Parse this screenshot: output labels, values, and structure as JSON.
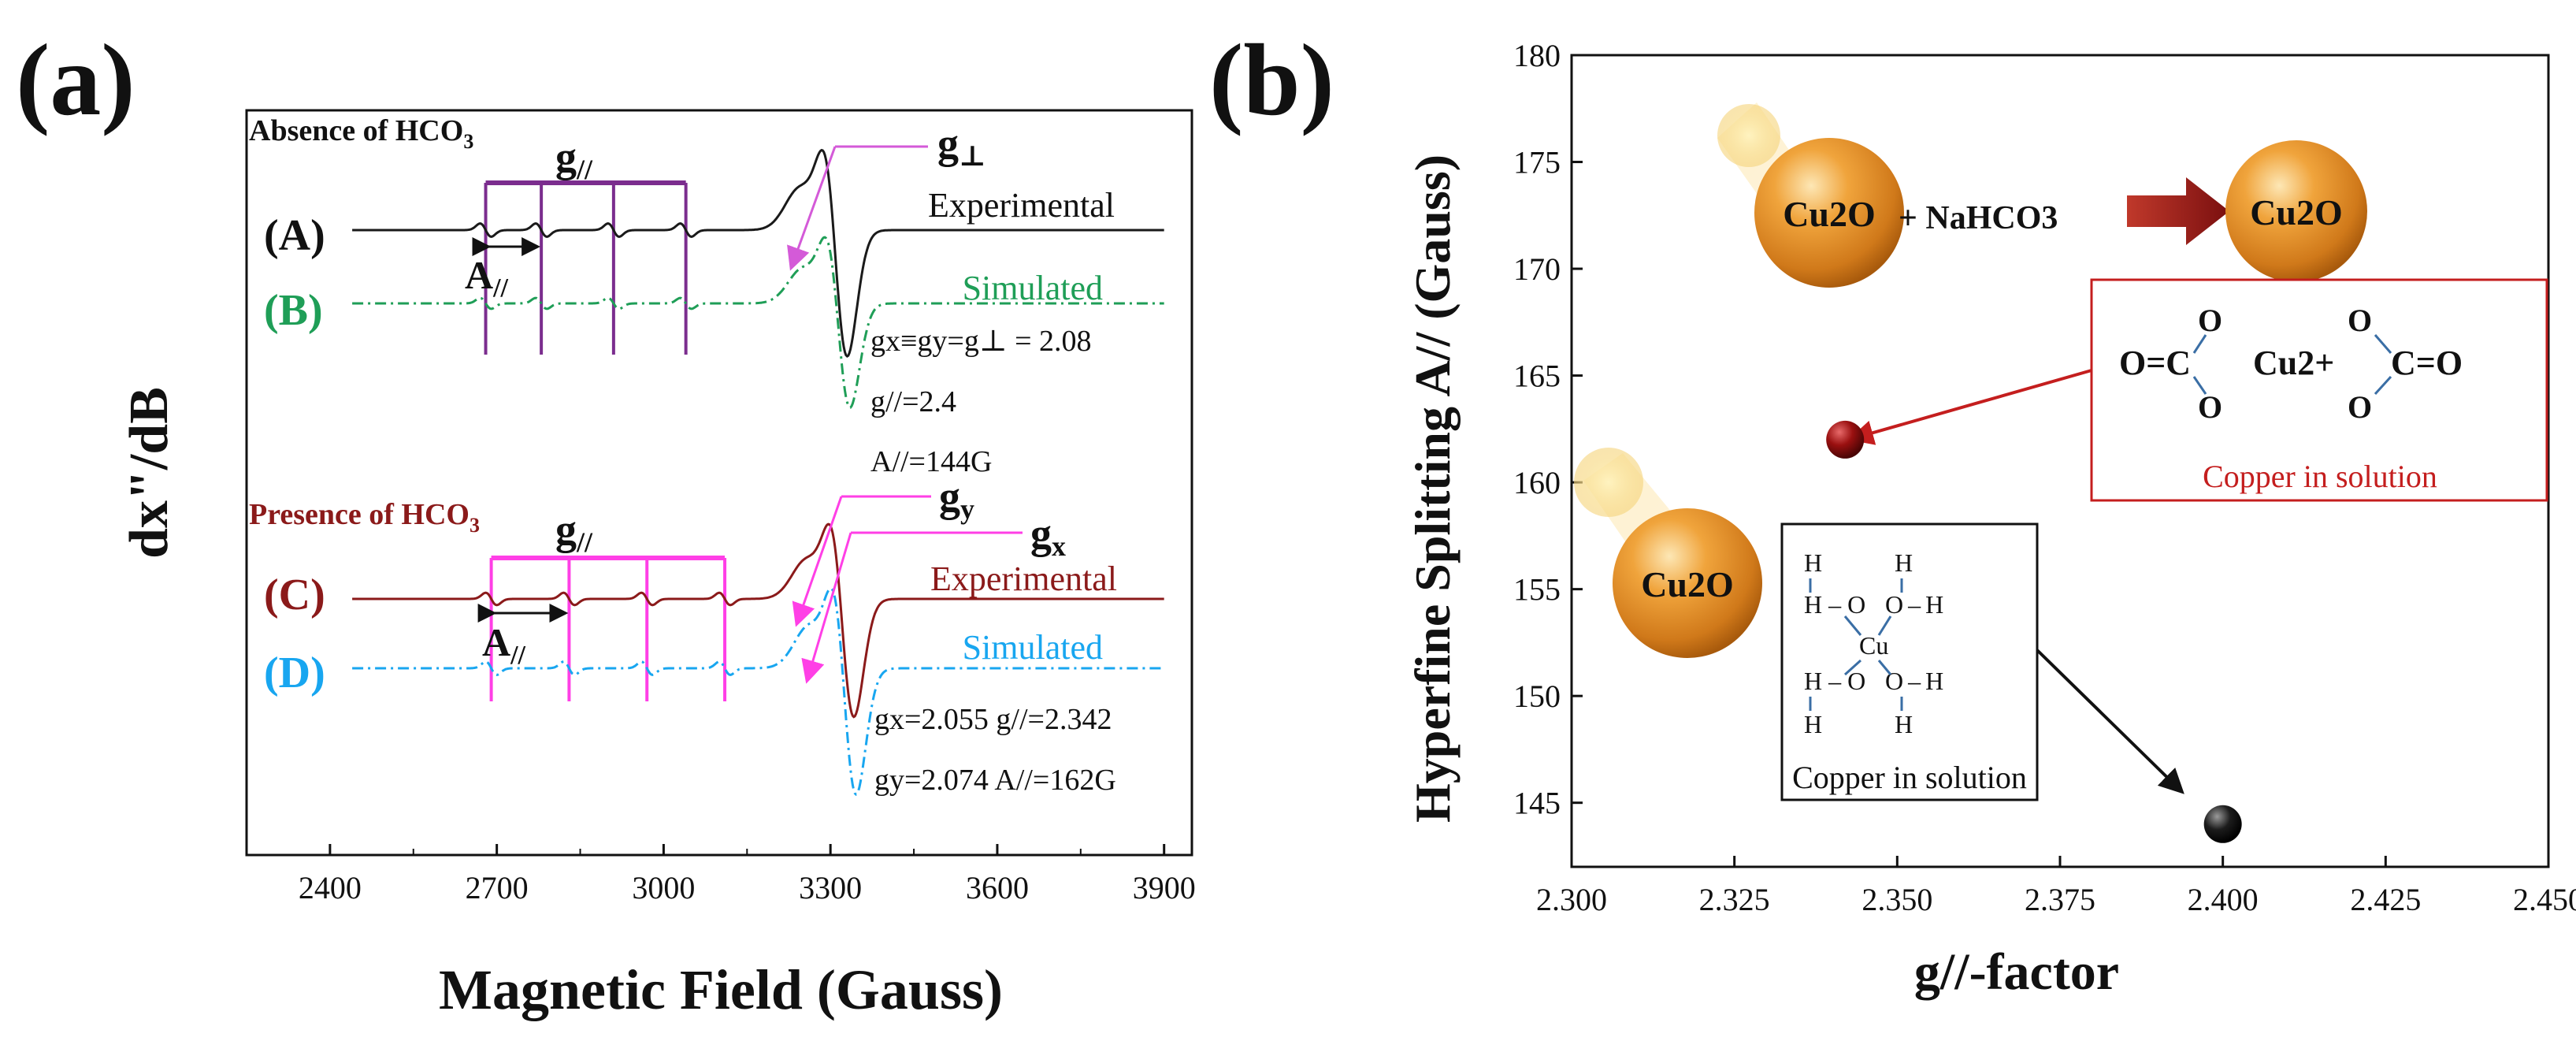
{
  "colors": {
    "black": "#1a1a1a",
    "purple": "#7b2d8e",
    "green": "#1f9e57",
    "darkred": "#8b1a1a",
    "magenta": "#ff3fe6",
    "cyan": "#18a6f0",
    "orange": "#e08a1a",
    "pink": "#d45ad8",
    "red": "#c41e1e"
  },
  "chart_data": [
    {
      "type": "line",
      "panel_label": "(a)",
      "xlabel": "Magnetic Field (Gauss)",
      "ylabel": "dx\"/dB",
      "xlim": [
        2250,
        3950
      ],
      "xticks": [
        2400,
        2700,
        3000,
        3300,
        3600,
        3900
      ],
      "series": [
        {
          "id": "A",
          "name": "(A)",
          "label": "Experimental",
          "style": "solid",
          "color_key": "black",
          "group": "Absence of HCO3",
          "center": 3310,
          "g_parallel_lines": [
            2680,
            2780,
            2910,
            3040
          ]
        },
        {
          "id": "B",
          "name": "(B)",
          "label": "Simulated",
          "style": "dashdot",
          "color_key": "green",
          "group": "Absence of HCO3",
          "center": 3315,
          "g_parallel_lines": [
            2680,
            2780,
            2910,
            3040
          ]
        },
        {
          "id": "C",
          "name": "(C)",
          "label": "Experimental",
          "style": "solid",
          "color_key": "darkred",
          "group": "Presence of HCO3",
          "center": 3322,
          "g_parallel_lines": [
            2690,
            2830,
            2970,
            3110
          ]
        },
        {
          "id": "D",
          "name": "(D)",
          "label": "Simulated",
          "style": "dashdot",
          "color_key": "cyan",
          "group": "Presence of HCO3",
          "center": 3326,
          "g_parallel_lines": [
            2690,
            2830,
            2970,
            3110
          ]
        }
      ],
      "texts": {
        "absence": "Absence of HCO",
        "presence": "Presence of HCO",
        "sub3": "3",
        "g_par": "g",
        "par_sub": "//",
        "g_perp": "g",
        "perp_sub": "⊥",
        "A_par": "A",
        "gy": "g",
        "gy_sub": "y",
        "gx": "g",
        "gx_sub": "x",
        "ann1_line1": "gx≡gy=g⊥ = 2.08",
        "ann1_line2": "g//=2.4",
        "ann1_line3": "A//=144G",
        "ann2_line1": "gx=2.055  g//=2.342",
        "ann2_line2": "gy=2.074  A//=162G"
      }
    },
    {
      "type": "scatter",
      "panel_label": "(b)",
      "xlabel": "g//-factor",
      "ylabel": "Hyperfine Splitting A// (Gauss)",
      "xlim": [
        2.3,
        2.45
      ],
      "ylim": [
        142,
        180
      ],
      "xticks": [
        "2.300",
        "2.325",
        "2.350",
        "2.375",
        "2.400",
        "2.425",
        "2.450"
      ],
      "yticks": [
        145,
        150,
        155,
        160,
        165,
        170,
        175,
        180
      ],
      "points": [
        {
          "x": 2.342,
          "y": 162,
          "color_key": "darkred",
          "label": "Copper in solution"
        },
        {
          "x": 2.4,
          "y": 144,
          "color_key": "black",
          "label": "Copper in solution"
        }
      ],
      "texts": {
        "cu2o": "Cu2O",
        "plus_nahco3": "+ NaHCO3",
        "copper_red": "Copper in solution",
        "copper_black": "Copper in solution",
        "carbonate_left": "O=C",
        "carbonate_right": "C=O",
        "cu2plus": "Cu2+",
        "o": "O",
        "h": "H",
        "cu": "Cu"
      }
    }
  ]
}
